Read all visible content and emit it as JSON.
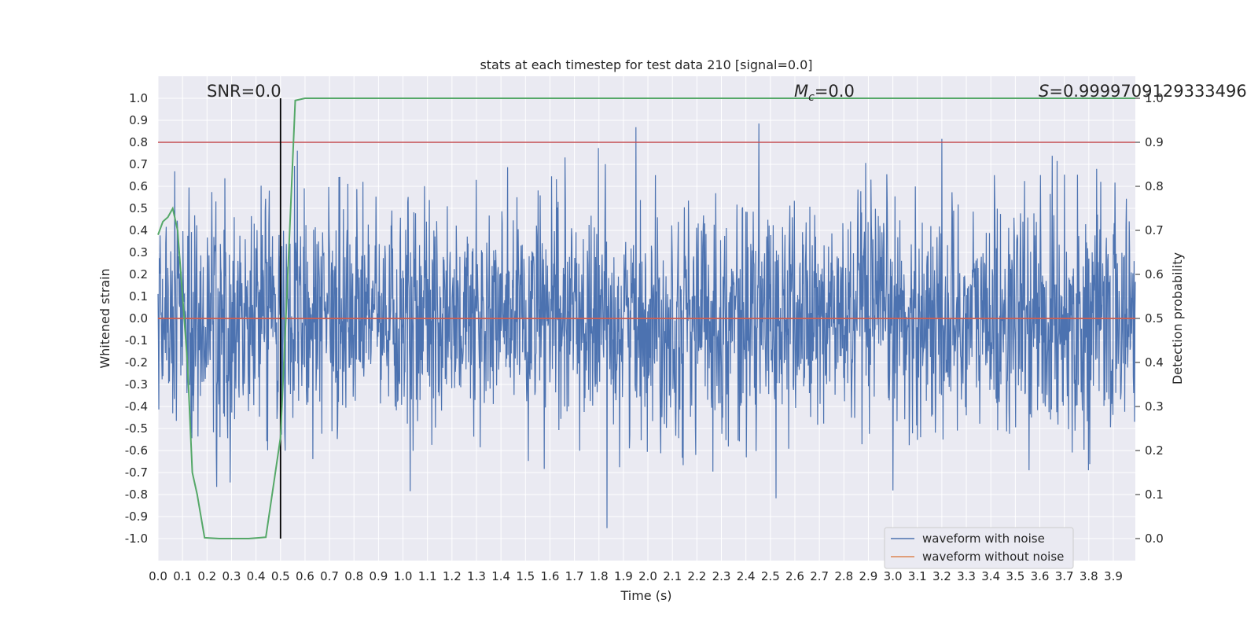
{
  "chart_data": {
    "type": "line",
    "title": "stats at each timestep for test data 210 [signal=0.0]",
    "xlabel": "Time (s)",
    "ylabel": "Whitened strain",
    "ylabel_right": "Detection probability",
    "xlim": [
      0.0,
      3.99
    ],
    "ylim": [
      -1.1,
      1.1
    ],
    "ylim_right": [
      -0.05,
      1.05
    ],
    "xticks": [
      "0.0",
      "0.1",
      "0.2",
      "0.3",
      "0.4",
      "0.5",
      "0.6",
      "0.7",
      "0.8",
      "0.9",
      "1.0",
      "1.1",
      "1.2",
      "1.3",
      "1.4",
      "1.5",
      "1.6",
      "1.7",
      "1.8",
      "1.9",
      "2.0",
      "2.1",
      "2.2",
      "2.3",
      "2.4",
      "2.5",
      "2.6",
      "2.7",
      "2.8",
      "2.9",
      "3.0",
      "3.1",
      "3.2",
      "3.3",
      "3.4",
      "3.5",
      "3.6",
      "3.7",
      "3.8",
      "3.9"
    ],
    "yticks": [
      "1.0",
      "0.9",
      "0.8",
      "0.7",
      "0.6",
      "0.5",
      "0.4",
      "0.3",
      "0.2",
      "0.1",
      "0.0",
      "-0.1",
      "-0.2",
      "-0.3",
      "-0.4",
      "-0.5",
      "-0.6",
      "-0.7",
      "-0.8",
      "-0.9",
      "-1.0"
    ],
    "yticks_right": [
      "1.0",
      "0.9",
      "0.8",
      "0.7",
      "0.6",
      "0.5",
      "0.4",
      "0.3",
      "0.2",
      "0.1",
      "0.0"
    ],
    "grid": true,
    "legend_position": "lower-right",
    "annotations": {
      "snr": "SNR=0.0",
      "mc_symbol": "M",
      "mc_sub": "c",
      "mc_value": "=0.0",
      "s_symbol": "S",
      "s_value": "=0.9999709129333496"
    },
    "reference_lines": {
      "threshold_right": 0.9,
      "baseline_right": 0.5,
      "vertical_x": 0.5,
      "vertical_range_right": [
        0.0,
        1.0
      ]
    },
    "series": [
      {
        "name": "waveform with noise",
        "color": "#4c72b0",
        "note_amplitude": "noise spanning roughly -0.96 to 1.0"
      },
      {
        "name": "waveform without noise",
        "color": "#dd8452",
        "values_constant": 0.0
      },
      {
        "color": "#55a868",
        "axis": "right",
        "x": [
          0.0,
          0.02,
          0.04,
          0.06,
          0.08,
          0.1,
          0.12,
          0.14,
          0.16,
          0.19,
          0.25,
          0.31,
          0.37,
          0.44,
          0.5,
          0.53,
          0.56,
          0.6,
          3.99
        ],
        "values": [
          0.69,
          0.72,
          0.73,
          0.75,
          0.7,
          0.55,
          0.4,
          0.15,
          0.1,
          0.002,
          0.0,
          0.0,
          0.0,
          0.003,
          0.23,
          0.6,
          0.995,
          1.0,
          1.0
        ]
      }
    ],
    "colors": {
      "background": "#eaeaf2",
      "grid": "#ffffff",
      "threshold": "#c44e52",
      "vertical": "#000000"
    }
  }
}
